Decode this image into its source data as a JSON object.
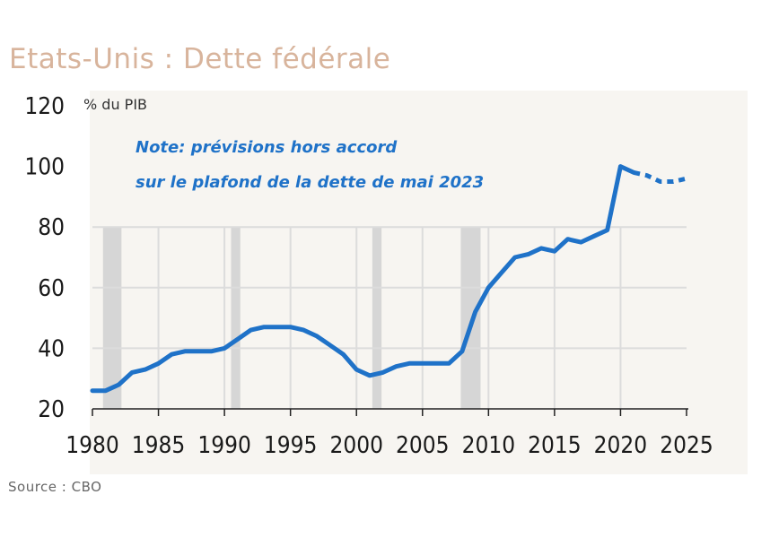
{
  "title": "Etats-Unis : Dette fédérale",
  "source": "Source : CBO",
  "chart_data": {
    "type": "line",
    "ylabel": "% du PIB",
    "note_lines": [
      "Note: prévisions hors accord",
      "sur le plafond de la dette de mai 2023"
    ],
    "xlim": [
      1980,
      2025
    ],
    "ylim": [
      20,
      120
    ],
    "xticks": [
      1980,
      1985,
      1990,
      1995,
      2000,
      2005,
      2010,
      2015,
      2020,
      2025
    ],
    "yticks": [
      20,
      40,
      60,
      80,
      100,
      120
    ],
    "recessions": [
      [
        1980.8,
        1982.2
      ],
      [
        1990.5,
        1991.2
      ],
      [
        2001.2,
        2001.9
      ],
      [
        2007.9,
        2009.4
      ]
    ],
    "series": [
      {
        "color": "#1f72c8",
        "style": "solid",
        "x": [
          1980,
          1981,
          1982,
          1983,
          1984,
          1985,
          1986,
          1987,
          1988,
          1989,
          1990,
          1991,
          1992,
          1993,
          1994,
          1995,
          1996,
          1997,
          1998,
          1999,
          2000,
          2001,
          2002,
          2003,
          2004,
          2005,
          2006,
          2007,
          2008,
          2009,
          2010,
          2011,
          2012,
          2013,
          2014,
          2015,
          2016,
          2017,
          2018,
          2019,
          2020,
          2021
        ],
        "y": [
          26,
          26,
          28,
          32,
          33,
          35,
          38,
          39,
          39,
          39,
          40,
          43,
          46,
          47,
          47,
          47,
          46,
          44,
          41,
          38,
          33,
          31,
          32,
          34,
          35,
          35,
          35,
          35,
          39,
          52,
          60,
          65,
          70,
          71,
          73,
          72,
          76,
          75,
          77,
          79,
          100,
          98
        ]
      },
      {
        "color": "#1f72c8",
        "style": "dashed",
        "x": [
          2021,
          2022,
          2023,
          2024,
          2025
        ],
        "y": [
          98,
          97,
          95,
          95,
          96
        ]
      }
    ]
  }
}
